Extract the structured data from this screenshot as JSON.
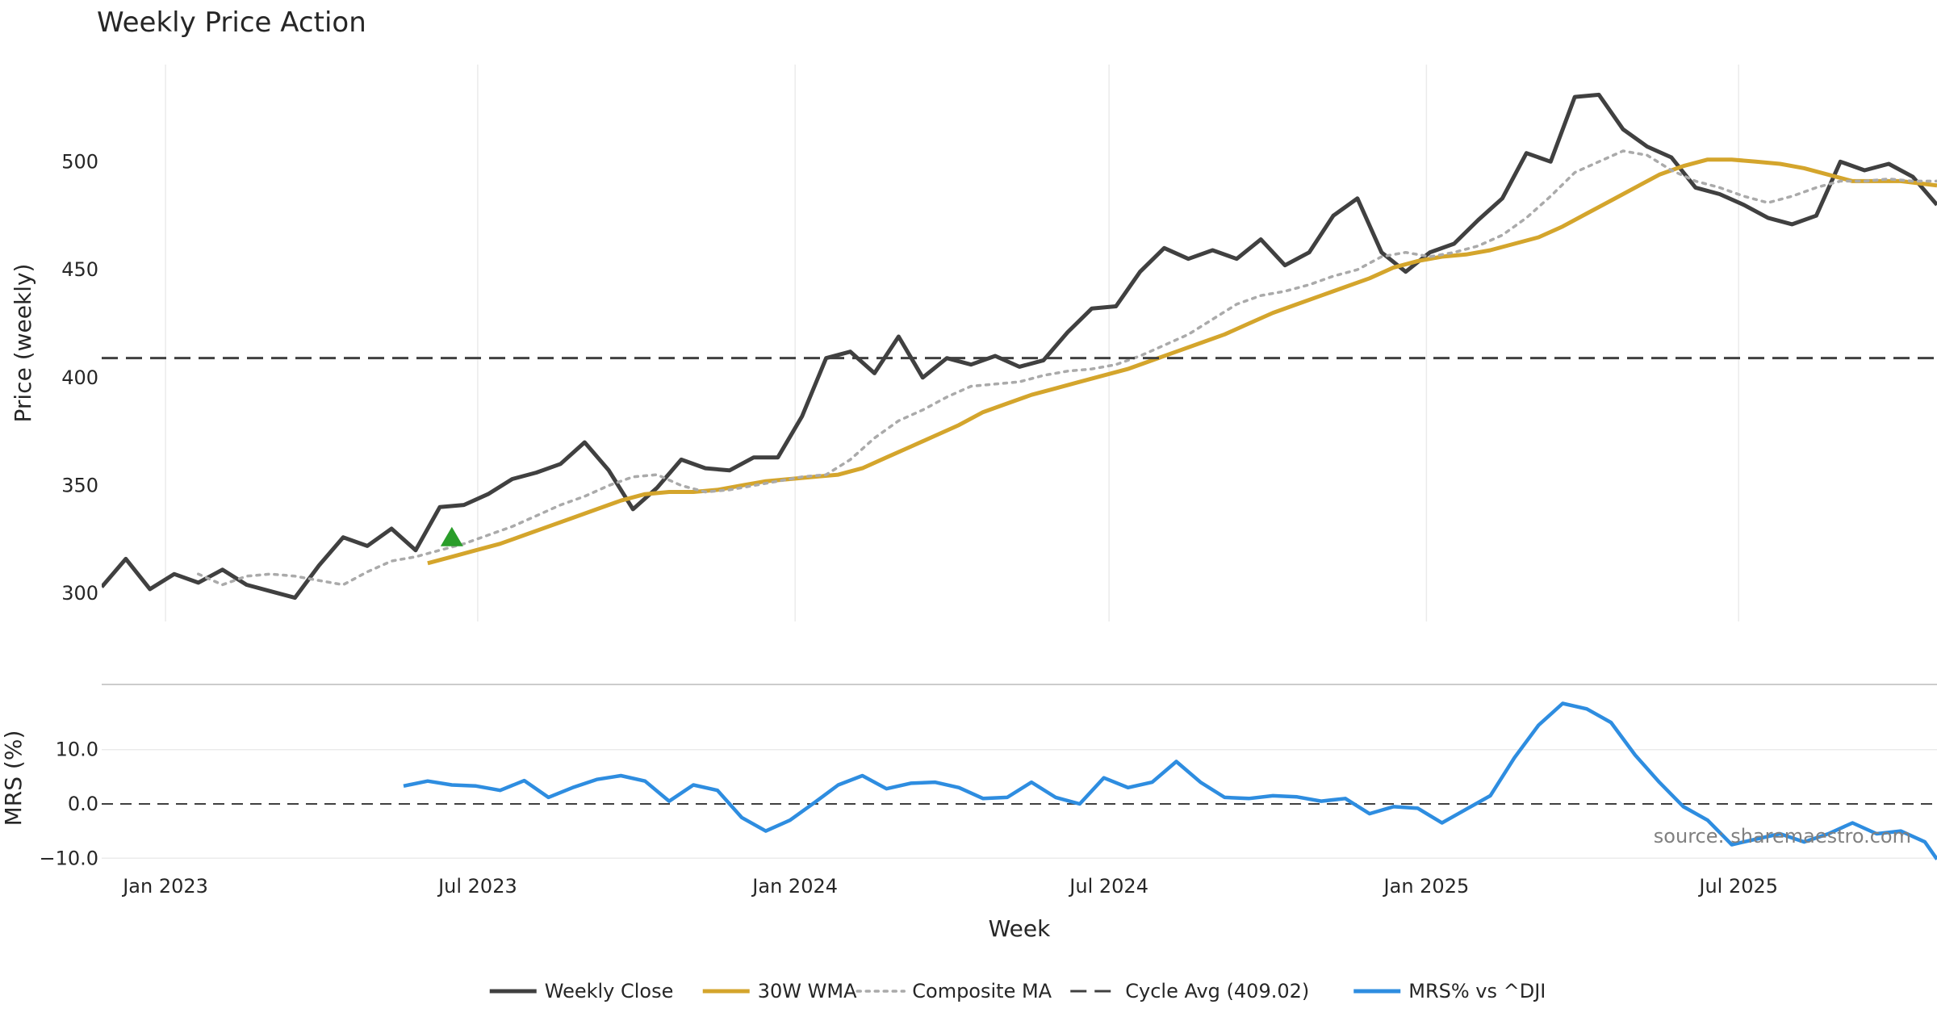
{
  "chart_data": [
    {
      "type": "line",
      "panel": "price",
      "title": "Weekly Price Action",
      "ylabel": "Price (weekly)",
      "xlabel": "Week",
      "ylim": [
        287,
        545
      ],
      "yticks": [
        300,
        350,
        400,
        450,
        500
      ],
      "x_range": [
        "2022-11-25",
        "2025-10-24"
      ],
      "xticks": [
        {
          "date": "2023-01-01",
          "label": "Jan 2023"
        },
        {
          "date": "2023-07-01",
          "label": "Jul 2023"
        },
        {
          "date": "2024-01-01",
          "label": "Jan 2024"
        },
        {
          "date": "2024-07-01",
          "label": "Jul 2024"
        },
        {
          "date": "2025-01-01",
          "label": "Jan 2025"
        },
        {
          "date": "2025-07-01",
          "label": "Jul 2025"
        }
      ],
      "grid": "vertical",
      "series": [
        {
          "name": "Weekly Close",
          "color": "#404040",
          "style": "solid",
          "x": [
            "2022-11-25",
            "2022-12-09",
            "2022-12-23",
            "2023-01-06",
            "2023-01-20",
            "2023-02-03",
            "2023-02-17",
            "2023-03-03",
            "2023-03-17",
            "2023-03-31",
            "2023-04-14",
            "2023-04-28",
            "2023-05-12",
            "2023-05-26",
            "2023-06-09",
            "2023-06-23",
            "2023-07-07",
            "2023-07-21",
            "2023-08-04",
            "2023-08-18",
            "2023-09-01",
            "2023-09-15",
            "2023-09-29",
            "2023-10-13",
            "2023-10-27",
            "2023-11-10",
            "2023-11-24",
            "2023-12-08",
            "2023-12-22",
            "2024-01-05",
            "2024-01-19",
            "2024-02-02",
            "2024-02-16",
            "2024-03-01",
            "2024-03-15",
            "2024-03-29",
            "2024-04-12",
            "2024-04-26",
            "2024-05-10",
            "2024-05-24",
            "2024-06-07",
            "2024-06-21",
            "2024-07-05",
            "2024-07-19",
            "2024-08-02",
            "2024-08-16",
            "2024-08-30",
            "2024-09-13",
            "2024-09-27",
            "2024-10-11",
            "2024-10-25",
            "2024-11-08",
            "2024-11-22",
            "2024-12-06",
            "2024-12-20",
            "2025-01-03",
            "2025-01-17",
            "2025-01-31",
            "2025-02-14",
            "2025-02-28",
            "2025-03-14",
            "2025-03-28",
            "2025-04-11",
            "2025-04-25",
            "2025-05-09",
            "2025-05-23",
            "2025-06-06",
            "2025-06-20",
            "2025-07-04",
            "2025-07-18",
            "2025-08-01",
            "2025-08-15",
            "2025-08-29",
            "2025-09-12",
            "2025-09-26",
            "2025-10-10",
            "2025-10-24"
          ],
          "values": [
            303,
            316,
            302,
            309,
            305,
            311,
            304,
            301,
            298,
            313,
            326,
            322,
            330,
            320,
            340,
            341,
            346,
            353,
            356,
            360,
            370,
            357,
            339,
            349,
            362,
            358,
            357,
            363,
            363,
            382,
            409,
            412,
            402,
            419,
            400,
            409,
            406,
            410,
            405,
            408,
            421,
            432,
            433,
            449,
            460,
            455,
            459,
            455,
            464,
            452,
            458,
            475,
            483,
            458,
            449,
            458,
            462,
            473,
            483,
            504,
            500,
            530,
            531,
            515,
            507,
            502,
            488,
            485,
            480,
            474,
            471,
            475,
            500,
            496,
            499,
            493,
            480
          ]
        },
        {
          "name": "30W WMA",
          "color": "#d4a52c",
          "style": "solid",
          "x": [
            "2023-06-02",
            "2023-06-16",
            "2023-06-30",
            "2023-07-14",
            "2023-07-28",
            "2023-08-11",
            "2023-08-25",
            "2023-09-08",
            "2023-09-22",
            "2023-10-06",
            "2023-10-20",
            "2023-11-03",
            "2023-11-17",
            "2023-12-01",
            "2023-12-15",
            "2023-12-29",
            "2024-01-12",
            "2024-01-26",
            "2024-02-09",
            "2024-02-23",
            "2024-03-08",
            "2024-03-22",
            "2024-04-05",
            "2024-04-19",
            "2024-05-03",
            "2024-05-17",
            "2024-05-31",
            "2024-06-14",
            "2024-06-28",
            "2024-07-12",
            "2024-07-26",
            "2024-08-09",
            "2024-08-23",
            "2024-09-06",
            "2024-09-20",
            "2024-10-04",
            "2024-10-18",
            "2024-11-01",
            "2024-11-15",
            "2024-11-29",
            "2024-12-13",
            "2024-12-27",
            "2025-01-10",
            "2025-01-24",
            "2025-02-07",
            "2025-02-21",
            "2025-03-07",
            "2025-03-21",
            "2025-04-04",
            "2025-04-18",
            "2025-05-02",
            "2025-05-16",
            "2025-05-30",
            "2025-06-13",
            "2025-06-27",
            "2025-07-11",
            "2025-07-25",
            "2025-08-08",
            "2025-08-22",
            "2025-09-05",
            "2025-09-19",
            "2025-10-03",
            "2025-10-24"
          ],
          "values": [
            314,
            317,
            320,
            323,
            327,
            331,
            335,
            339,
            343,
            346,
            347,
            347,
            348,
            350,
            352,
            353,
            354,
            355,
            358,
            363,
            368,
            373,
            378,
            384,
            388,
            392,
            395,
            398,
            401,
            404,
            408,
            412,
            416,
            420,
            425,
            430,
            434,
            438,
            442,
            446,
            451,
            454,
            456,
            457,
            459,
            462,
            465,
            470,
            476,
            482,
            488,
            494,
            498,
            501,
            501,
            500,
            499,
            497,
            494,
            491,
            491,
            491,
            489
          ]
        },
        {
          "name": "Composite MA",
          "color": "#aaaaaa",
          "style": "dotted",
          "x": [
            "2023-01-20",
            "2023-02-03",
            "2023-02-17",
            "2023-03-03",
            "2023-03-17",
            "2023-03-31",
            "2023-04-14",
            "2023-04-28",
            "2023-05-12",
            "2023-05-26",
            "2023-06-09",
            "2023-06-23",
            "2023-07-07",
            "2023-07-21",
            "2023-08-04",
            "2023-08-18",
            "2023-09-01",
            "2023-09-15",
            "2023-09-29",
            "2023-10-13",
            "2023-10-27",
            "2023-11-10",
            "2023-11-24",
            "2023-12-08",
            "2023-12-22",
            "2024-01-05",
            "2024-01-19",
            "2024-02-02",
            "2024-02-16",
            "2024-03-01",
            "2024-03-15",
            "2024-03-29",
            "2024-04-12",
            "2024-04-26",
            "2024-05-10",
            "2024-05-24",
            "2024-06-07",
            "2024-06-21",
            "2024-07-05",
            "2024-07-19",
            "2024-08-02",
            "2024-08-16",
            "2024-08-30",
            "2024-09-13",
            "2024-09-27",
            "2024-10-11",
            "2024-10-25",
            "2024-11-08",
            "2024-11-22",
            "2024-12-06",
            "2024-12-20",
            "2025-01-03",
            "2025-01-17",
            "2025-01-31",
            "2025-02-14",
            "2025-02-28",
            "2025-03-14",
            "2025-03-28",
            "2025-04-11",
            "2025-04-25",
            "2025-05-09",
            "2025-05-23",
            "2025-06-06",
            "2025-06-20",
            "2025-07-04",
            "2025-07-18",
            "2025-08-01",
            "2025-08-15",
            "2025-08-29",
            "2025-09-12",
            "2025-09-26",
            "2025-10-10",
            "2025-10-24"
          ],
          "values": [
            309,
            304,
            308,
            309,
            308,
            306,
            304,
            310,
            315,
            317,
            320,
            323,
            327,
            331,
            336,
            341,
            345,
            350,
            354,
            355,
            350,
            347,
            348,
            350,
            352,
            354,
            355,
            362,
            372,
            380,
            385,
            391,
            396,
            397,
            398,
            401,
            403,
            404,
            406,
            410,
            415,
            420,
            427,
            434,
            438,
            440,
            443,
            447,
            450,
            456,
            458,
            456,
            458,
            461,
            466,
            474,
            484,
            495,
            500,
            505,
            503,
            496,
            491,
            488,
            484,
            481,
            484,
            488,
            491,
            491,
            492,
            491,
            491
          ]
        },
        {
          "name": "Cycle Avg (409.02)",
          "color": "#404040",
          "style": "dashed",
          "hline": 409.02
        }
      ],
      "annotations": [
        {
          "type": "marker",
          "shape": "triangle-up",
          "color": "#2a9d2a",
          "x": "2023-06-16",
          "y": 326
        }
      ]
    },
    {
      "type": "line",
      "panel": "mrs",
      "ylabel": "MRS (%)",
      "ylim": [
        -11,
        22
      ],
      "yticks": [
        {
          "value": 10,
          "label": "10.0"
        },
        {
          "value": 0,
          "label": "0.0"
        },
        {
          "value": -10,
          "label": "−10.0"
        }
      ],
      "grid": "horizontal",
      "zero_line": "dashed",
      "series": [
        {
          "name": "MRS% vs ^DJI",
          "color": "#2e8de0",
          "style": "solid",
          "x": [
            "2023-05-19",
            "2023-06-02",
            "2023-06-16",
            "2023-06-30",
            "2023-07-14",
            "2023-07-28",
            "2023-08-11",
            "2023-08-25",
            "2023-09-08",
            "2023-09-22",
            "2023-10-06",
            "2023-10-20",
            "2023-11-03",
            "2023-11-17",
            "2023-12-01",
            "2023-12-15",
            "2023-12-29",
            "2024-01-12",
            "2024-01-26",
            "2024-02-09",
            "2024-02-23",
            "2024-03-08",
            "2024-03-22",
            "2024-04-05",
            "2024-04-19",
            "2024-05-03",
            "2024-05-17",
            "2024-05-31",
            "2024-06-14",
            "2024-06-28",
            "2024-07-12",
            "2024-07-26",
            "2024-08-09",
            "2024-08-23",
            "2024-09-06",
            "2024-09-20",
            "2024-10-04",
            "2024-10-18",
            "2024-11-01",
            "2024-11-15",
            "2024-11-29",
            "2024-12-13",
            "2024-12-27",
            "2025-01-10",
            "2025-01-24",
            "2025-02-07",
            "2025-02-21",
            "2025-03-07",
            "2025-03-21",
            "2025-04-04",
            "2025-04-18",
            "2025-05-02",
            "2025-05-16",
            "2025-05-30",
            "2025-06-13",
            "2025-06-27",
            "2025-07-11",
            "2025-07-25",
            "2025-08-08",
            "2025-08-22",
            "2025-09-05",
            "2025-09-19",
            "2025-10-03",
            "2025-10-17",
            "2025-10-24"
          ],
          "values": [
            3.3,
            4.2,
            3.5,
            3.3,
            2.5,
            4.3,
            1.2,
            3.0,
            4.5,
            5.2,
            4.2,
            0.5,
            3.5,
            2.5,
            -2.5,
            -5.0,
            -3.0,
            0.2,
            3.5,
            5.2,
            2.8,
            3.8,
            4.0,
            3.0,
            1.0,
            1.2,
            4.0,
            1.2,
            0.0,
            4.8,
            3.0,
            4.0,
            7.8,
            4.0,
            1.2,
            1.0,
            1.5,
            1.3,
            0.5,
            1.0,
            -1.8,
            -0.5,
            -0.8,
            -3.5,
            -1.0,
            1.5,
            8.5,
            14.5,
            18.5,
            17.5,
            15.0,
            9.0,
            4.0,
            -0.5,
            -3.0,
            -7.5,
            -6.5,
            -5.5,
            -7.0,
            -5.5,
            -3.5,
            -5.5,
            -5.0,
            -7.0,
            -10.2
          ]
        }
      ]
    }
  ],
  "legend": {
    "position": "bottom-center",
    "items": [
      {
        "label": "Weekly Close",
        "color": "#404040",
        "style": "solid"
      },
      {
        "label": "30W WMA",
        "color": "#d4a52c",
        "style": "solid"
      },
      {
        "label": "Composite MA",
        "color": "#aaaaaa",
        "style": "dotted"
      },
      {
        "label": "Cycle Avg (409.02)",
        "color": "#404040",
        "style": "dashed"
      },
      {
        "label": "MRS% vs ^DJI",
        "color": "#2e8de0",
        "style": "solid"
      }
    ]
  },
  "watermark": "source: sharemaestro.com"
}
